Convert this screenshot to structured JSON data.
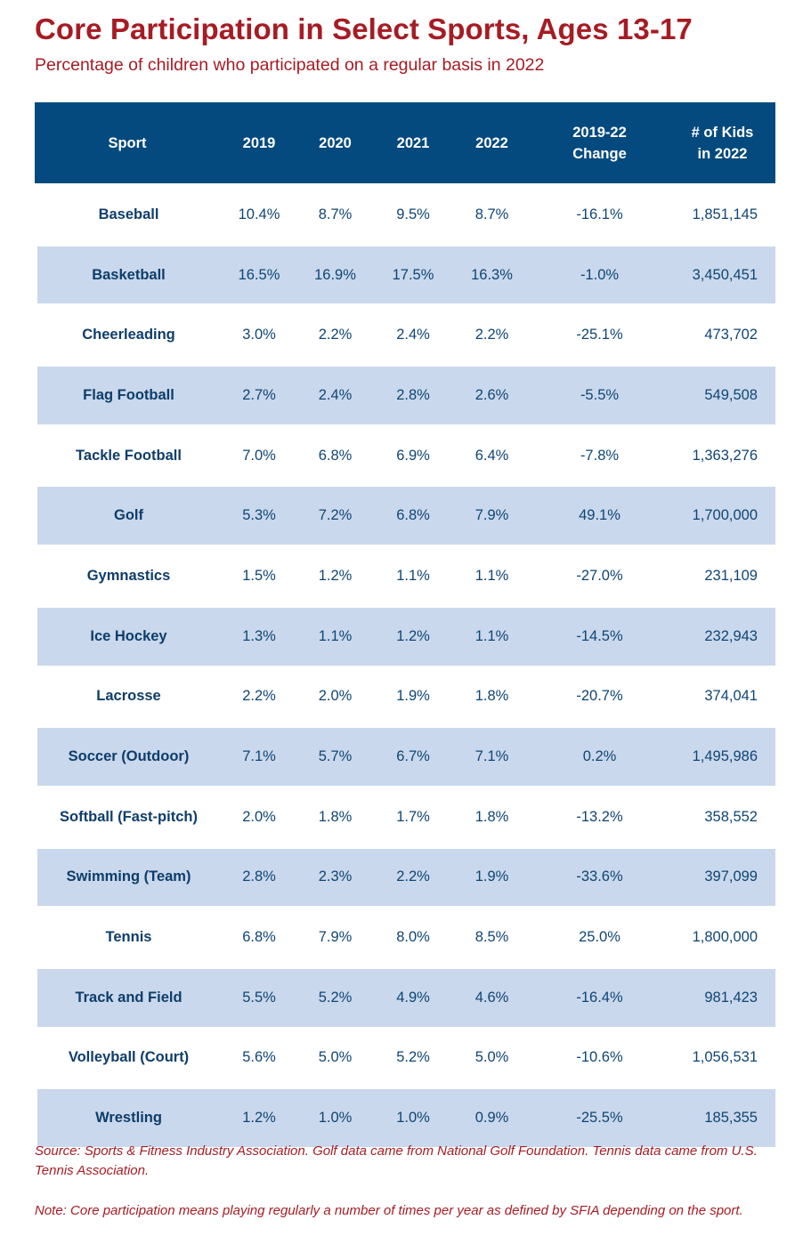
{
  "title": "Core Participation in Select Sports, Ages 13-17",
  "subtitle": "Percentage of children who participated on a regular basis in 2022",
  "colors": {
    "accent": "#a61c24",
    "header_bg": "#044a7e",
    "row_alt": "#c9d8ec",
    "text": "#0f4574"
  },
  "columns": {
    "sport": "Sport",
    "y2019": "2019",
    "y2020": "2020",
    "y2021": "2021",
    "y2022": "2022",
    "change_line1": "2019-22",
    "change_line2": "Change",
    "kids_line1": "# of Kids",
    "kids_line2": "in 2022"
  },
  "source": "Source: Sports & Fitness Industry Association. Golf data came from National Golf Foundation. Tennis data came from U.S. Tennis Association.",
  "note": "Note: Core participation means playing regularly a number of times per year as defined by SFIA depending on the sport.",
  "chart_data": {
    "type": "table",
    "title": "Core Participation in Select Sports, Ages 13-17",
    "subtitle": "Percentage of children who participated on a regular basis in 2022",
    "rows": [
      {
        "sport": "Baseball",
        "y2019": "10.4%",
        "y2020": "8.7%",
        "y2021": "9.5%",
        "y2022": "8.7%",
        "change": "-16.1%",
        "kids": "1,851,145"
      },
      {
        "sport": "Basketball",
        "y2019": "16.5%",
        "y2020": "16.9%",
        "y2021": "17.5%",
        "y2022": "16.3%",
        "change": "-1.0%",
        "kids": "3,450,451"
      },
      {
        "sport": "Cheerleading",
        "y2019": "3.0%",
        "y2020": "2.2%",
        "y2021": "2.4%",
        "y2022": "2.2%",
        "change": "-25.1%",
        "kids": "473,702"
      },
      {
        "sport": "Flag Football",
        "y2019": "2.7%",
        "y2020": "2.4%",
        "y2021": "2.8%",
        "y2022": "2.6%",
        "change": "-5.5%",
        "kids": "549,508"
      },
      {
        "sport": "Tackle Football",
        "y2019": "7.0%",
        "y2020": "6.8%",
        "y2021": "6.9%",
        "y2022": "6.4%",
        "change": "-7.8%",
        "kids": "1,363,276"
      },
      {
        "sport": "Golf",
        "y2019": "5.3%",
        "y2020": "7.2%",
        "y2021": "6.8%",
        "y2022": "7.9%",
        "change": "49.1%",
        "kids": "1,700,000"
      },
      {
        "sport": "Gymnastics",
        "y2019": "1.5%",
        "y2020": "1.2%",
        "y2021": "1.1%",
        "y2022": "1.1%",
        "change": "-27.0%",
        "kids": "231,109"
      },
      {
        "sport": "Ice Hockey",
        "y2019": "1.3%",
        "y2020": "1.1%",
        "y2021": "1.2%",
        "y2022": "1.1%",
        "change": "-14.5%",
        "kids": "232,943"
      },
      {
        "sport": "Lacrosse",
        "y2019": "2.2%",
        "y2020": "2.0%",
        "y2021": "1.9%",
        "y2022": "1.8%",
        "change": "-20.7%",
        "kids": "374,041"
      },
      {
        "sport": "Soccer (Outdoor)",
        "y2019": "7.1%",
        "y2020": "5.7%",
        "y2021": "6.7%",
        "y2022": "7.1%",
        "change": "0.2%",
        "kids": "1,495,986"
      },
      {
        "sport": "Softball (Fast-pitch)",
        "y2019": "2.0%",
        "y2020": "1.8%",
        "y2021": "1.7%",
        "y2022": "1.8%",
        "change": "-13.2%",
        "kids": "358,552"
      },
      {
        "sport": "Swimming (Team)",
        "y2019": "2.8%",
        "y2020": "2.3%",
        "y2021": "2.2%",
        "y2022": "1.9%",
        "change": "-33.6%",
        "kids": "397,099"
      },
      {
        "sport": "Tennis",
        "y2019": "6.8%",
        "y2020": "7.9%",
        "y2021": "8.0%",
        "y2022": "8.5%",
        "change": "25.0%",
        "kids": "1,800,000"
      },
      {
        "sport": "Track and Field",
        "y2019": "5.5%",
        "y2020": "5.2%",
        "y2021": "4.9%",
        "y2022": "4.6%",
        "change": "-16.4%",
        "kids": "981,423"
      },
      {
        "sport": "Volleyball (Court)",
        "y2019": "5.6%",
        "y2020": "5.0%",
        "y2021": "5.2%",
        "y2022": "5.0%",
        "change": "-10.6%",
        "kids": "1,056,531"
      },
      {
        "sport": "Wrestling",
        "y2019": "1.2%",
        "y2020": "1.0%",
        "y2021": "1.0%",
        "y2022": "0.9%",
        "change": "-25.5%",
        "kids": "185,355"
      }
    ]
  }
}
